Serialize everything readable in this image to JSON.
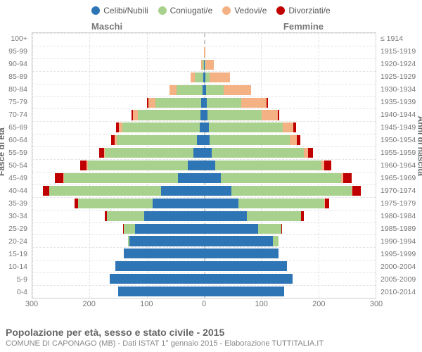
{
  "legend": [
    {
      "label": "Celibi/Nubili",
      "color": "#2e75b6"
    },
    {
      "label": "Coniugati/e",
      "color": "#a9d18e"
    },
    {
      "label": "Vedovi/e",
      "color": "#f4b183"
    },
    {
      "label": "Divorziati/e",
      "color": "#c00000"
    }
  ],
  "headers": {
    "male": "Maschi",
    "female": "Femmine"
  },
  "axis_left_title": "Fasce di età",
  "axis_right_title": "Anni di nascita",
  "x_max": 300,
  "x_ticks": [
    300,
    200,
    100,
    0,
    100,
    200,
    300
  ],
  "footer_title": "Popolazione per età, sesso e stato civile - 2015",
  "footer_sub": "COMUNE DI CAPONAGO (MB) - Dati ISTAT 1° gennaio 2015 - Elaborazione TUTTITALIA.IT",
  "colors": {
    "single": "#2e75b6",
    "married": "#a9d18e",
    "widowed": "#f4b183",
    "divorced": "#c00000",
    "grid": "#e3e3e3",
    "border": "#cccccc",
    "text": "#666666",
    "bg": "#ffffff"
  },
  "rows": [
    {
      "age": "100+",
      "birth": "≤ 1914",
      "m": {
        "s": 0,
        "c": 0,
        "v": 0,
        "d": 0
      },
      "f": {
        "s": 0,
        "c": 0,
        "v": 0,
        "d": 0
      }
    },
    {
      "age": "95-99",
      "birth": "1915-1919",
      "m": {
        "s": 0,
        "c": 0,
        "v": 0,
        "d": 0
      },
      "f": {
        "s": 0,
        "c": 0,
        "v": 2,
        "d": 0
      }
    },
    {
      "age": "90-94",
      "birth": "1920-1924",
      "m": {
        "s": 0,
        "c": 3,
        "v": 2,
        "d": 0
      },
      "f": {
        "s": 1,
        "c": 2,
        "v": 14,
        "d": 0
      }
    },
    {
      "age": "85-89",
      "birth": "1925-1929",
      "m": {
        "s": 1,
        "c": 15,
        "v": 8,
        "d": 0
      },
      "f": {
        "s": 2,
        "c": 8,
        "v": 35,
        "d": 0
      }
    },
    {
      "age": "80-84",
      "birth": "1930-1934",
      "m": {
        "s": 3,
        "c": 45,
        "v": 12,
        "d": 0
      },
      "f": {
        "s": 4,
        "c": 30,
        "v": 48,
        "d": 0
      }
    },
    {
      "age": "75-79",
      "birth": "1935-1939",
      "m": {
        "s": 5,
        "c": 80,
        "v": 12,
        "d": 2
      },
      "f": {
        "s": 5,
        "c": 60,
        "v": 45,
        "d": 2
      }
    },
    {
      "age": "70-74",
      "birth": "1940-1944",
      "m": {
        "s": 6,
        "c": 110,
        "v": 8,
        "d": 3
      },
      "f": {
        "s": 6,
        "c": 95,
        "v": 28,
        "d": 3
      }
    },
    {
      "age": "65-69",
      "birth": "1945-1949",
      "m": {
        "s": 8,
        "c": 135,
        "v": 6,
        "d": 5
      },
      "f": {
        "s": 8,
        "c": 130,
        "v": 18,
        "d": 5
      }
    },
    {
      "age": "60-64",
      "birth": "1950-1954",
      "m": {
        "s": 12,
        "c": 140,
        "v": 4,
        "d": 6
      },
      "f": {
        "s": 10,
        "c": 140,
        "v": 12,
        "d": 6
      }
    },
    {
      "age": "55-59",
      "birth": "1955-1959",
      "m": {
        "s": 18,
        "c": 155,
        "v": 2,
        "d": 8
      },
      "f": {
        "s": 14,
        "c": 160,
        "v": 8,
        "d": 8
      }
    },
    {
      "age": "50-54",
      "birth": "1960-1964",
      "m": {
        "s": 28,
        "c": 175,
        "v": 2,
        "d": 12
      },
      "f": {
        "s": 20,
        "c": 185,
        "v": 5,
        "d": 12
      }
    },
    {
      "age": "45-49",
      "birth": "1965-1969",
      "m": {
        "s": 45,
        "c": 200,
        "v": 1,
        "d": 15
      },
      "f": {
        "s": 30,
        "c": 210,
        "v": 3,
        "d": 15
      }
    },
    {
      "age": "40-44",
      "birth": "1970-1974",
      "m": {
        "s": 75,
        "c": 195,
        "v": 0,
        "d": 12
      },
      "f": {
        "s": 48,
        "c": 210,
        "v": 2,
        "d": 14
      }
    },
    {
      "age": "35-39",
      "birth": "1975-1979",
      "m": {
        "s": 90,
        "c": 130,
        "v": 0,
        "d": 6
      },
      "f": {
        "s": 60,
        "c": 150,
        "v": 1,
        "d": 8
      }
    },
    {
      "age": "30-34",
      "birth": "1980-1984",
      "m": {
        "s": 105,
        "c": 65,
        "v": 0,
        "d": 3
      },
      "f": {
        "s": 75,
        "c": 95,
        "v": 0,
        "d": 4
      }
    },
    {
      "age": "25-29",
      "birth": "1985-1989",
      "m": {
        "s": 120,
        "c": 20,
        "v": 0,
        "d": 1
      },
      "f": {
        "s": 95,
        "c": 40,
        "v": 0,
        "d": 2
      }
    },
    {
      "age": "20-24",
      "birth": "1990-1994",
      "m": {
        "s": 130,
        "c": 3,
        "v": 0,
        "d": 0
      },
      "f": {
        "s": 120,
        "c": 10,
        "v": 0,
        "d": 0
      }
    },
    {
      "age": "15-19",
      "birth": "1995-1999",
      "m": {
        "s": 140,
        "c": 0,
        "v": 0,
        "d": 0
      },
      "f": {
        "s": 130,
        "c": 0,
        "v": 0,
        "d": 0
      }
    },
    {
      "age": "10-14",
      "birth": "2000-2004",
      "m": {
        "s": 155,
        "c": 0,
        "v": 0,
        "d": 0
      },
      "f": {
        "s": 145,
        "c": 0,
        "v": 0,
        "d": 0
      }
    },
    {
      "age": "5-9",
      "birth": "2005-2009",
      "m": {
        "s": 165,
        "c": 0,
        "v": 0,
        "d": 0
      },
      "f": {
        "s": 155,
        "c": 0,
        "v": 0,
        "d": 0
      }
    },
    {
      "age": "0-4",
      "birth": "2010-2014",
      "m": {
        "s": 150,
        "c": 0,
        "v": 0,
        "d": 0
      },
      "f": {
        "s": 140,
        "c": 0,
        "v": 0,
        "d": 0
      }
    }
  ]
}
